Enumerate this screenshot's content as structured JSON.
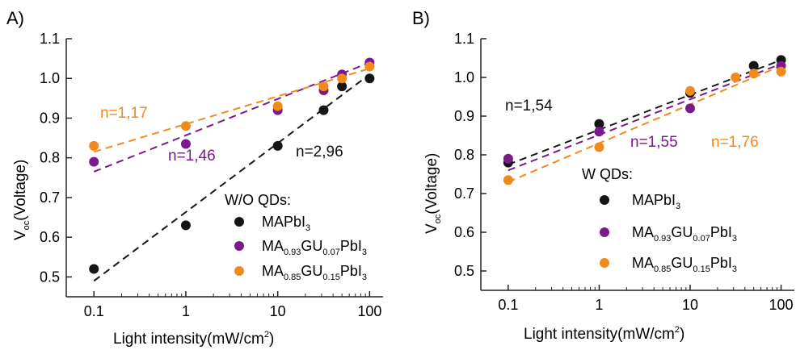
{
  "colors": {
    "black": "#151515",
    "purple": "#7a1a8c",
    "orange": "#f08a1c"
  },
  "panels": [
    {
      "letter": "A)",
      "x_ticks": [
        "0.1",
        "1",
        "10",
        "100"
      ],
      "y_ticks": [
        "0.5",
        "0.6",
        "0.7",
        "0.8",
        "0.9",
        "1.0",
        "1.1"
      ],
      "xlabel": {
        "main": "Light intensity(mW/cm",
        "sup": "2",
        "end": ")"
      },
      "ylabel": {
        "main": "V",
        "sub": "oc",
        "rest": "(Voltage)"
      },
      "legend_title": "W/O QDs:",
      "legend": [
        {
          "pre": "MAPbI",
          "s1": "3",
          "mid": "",
          "s2": "",
          "post": "",
          "s3": ""
        },
        {
          "pre": "MA",
          "s1": "0.93",
          "mid": "GU",
          "s2": "0.07",
          "post": "PbI",
          "s3": "3"
        },
        {
          "pre": "MA",
          "s1": "0.85",
          "mid": "GU",
          "s2": "0.15",
          "post": "PbI",
          "s3": "3"
        }
      ],
      "annotations": [
        "n=1,17",
        "n=1,46",
        "n=2,96"
      ]
    },
    {
      "letter": "B)",
      "x_ticks": [
        "0.1",
        "1",
        "10",
        "100"
      ],
      "y_ticks": [
        "0.5",
        "0.6",
        "0.7",
        "0.8",
        "0.9",
        "1.0",
        "1.1"
      ],
      "xlabel": {
        "main": "Light intensity(mW/cm",
        "sup": "2",
        "end": ")"
      },
      "ylabel": {
        "main": "V",
        "sub": "oc",
        "rest": "(Voltage)"
      },
      "legend_title": "W QDs:",
      "legend": [
        {
          "pre": "MAPbI",
          "s1": "3",
          "mid": "",
          "s2": "",
          "post": "",
          "s3": ""
        },
        {
          "pre": "MA",
          "s1": "0.93",
          "mid": "GU",
          "s2": "0.07",
          "post": "PbI",
          "s3": "3"
        },
        {
          "pre": "MA",
          "s1": "0.85",
          "mid": "GU",
          "s2": "0.15",
          "post": "PbI",
          "s3": "3"
        }
      ],
      "annotations": [
        "n=1,54",
        "n=1,55",
        "n=1,76"
      ]
    }
  ],
  "chart_data": [
    {
      "type": "scatter",
      "xscale": "log",
      "xlim": [
        0.05,
        140
      ],
      "ylim": [
        0.45,
        1.1
      ],
      "xlabel": "Light intensity(mW/cm2)",
      "ylabel": "Voc(Voltage)",
      "legend_title": "W/O QDs:",
      "series": [
        {
          "name": "MAPbI3",
          "color": "black",
          "x": [
            0.1,
            1,
            10,
            31.6,
            50,
            100
          ],
          "y": [
            0.52,
            0.63,
            0.83,
            0.92,
            0.98,
            1.0
          ],
          "fit": {
            "x": [
              0.1,
              100
            ],
            "y": [
              0.49,
              1.01
            ]
          }
        },
        {
          "name": "MA0.93GU0.07PbI3",
          "color": "purple",
          "x": [
            0.1,
            1,
            10,
            31.6,
            50,
            100
          ],
          "y": [
            0.79,
            0.835,
            0.92,
            0.97,
            1.01,
            1.04
          ],
          "fit": {
            "x": [
              0.1,
              100
            ],
            "y": [
              0.765,
              1.04
            ]
          }
        },
        {
          "name": "MA0.85GU0.15PbI3",
          "color": "orange",
          "x": [
            0.1,
            1,
            10,
            31.6,
            50,
            100
          ],
          "y": [
            0.83,
            0.88,
            0.93,
            0.98,
            1.0,
            1.03
          ],
          "fit": {
            "x": [
              0.1,
              100
            ],
            "y": [
              0.815,
              1.025
            ]
          }
        }
      ]
    },
    {
      "type": "scatter",
      "xscale": "log",
      "xlim": [
        0.05,
        140
      ],
      "ylim": [
        0.45,
        1.1
      ],
      "xlabel": "Light intensity(mW/cm2)",
      "ylabel": "Voc(Voltage)",
      "legend_title": "W QDs:",
      "series": [
        {
          "name": "MAPbI3",
          "color": "black",
          "x": [
            0.1,
            1,
            10,
            50,
            100
          ],
          "y": [
            0.78,
            0.88,
            0.96,
            1.03,
            1.045
          ],
          "fit": {
            "x": [
              0.1,
              100
            ],
            "y": [
              0.775,
              1.045
            ]
          }
        },
        {
          "name": "MA0.93GU0.07PbI3",
          "color": "purple",
          "x": [
            0.1,
            1,
            10,
            100
          ],
          "y": [
            0.79,
            0.86,
            0.92,
            1.03
          ],
          "fit": {
            "x": [
              0.1,
              100
            ],
            "y": [
              0.76,
              1.035
            ]
          }
        },
        {
          "name": "MA0.85GU0.15PbI3",
          "color": "orange",
          "x": [
            0.1,
            1,
            10,
            31.6,
            50,
            100
          ],
          "y": [
            0.735,
            0.82,
            0.965,
            1.0,
            1.01,
            1.015
          ],
          "fit": {
            "x": [
              0.1,
              100
            ],
            "y": [
              0.73,
              1.03
            ]
          }
        }
      ]
    }
  ]
}
